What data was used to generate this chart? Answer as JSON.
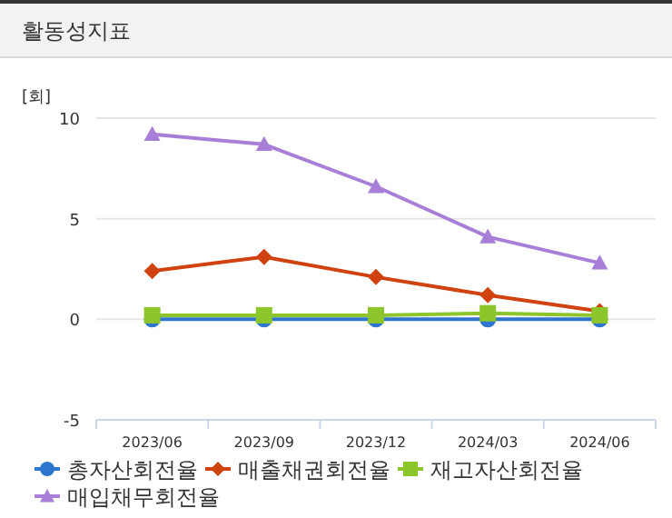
{
  "chart_data": {
    "type": "line",
    "title": "활동성지표",
    "ylabel": "[회]",
    "categories": [
      "2023/06",
      "2023/09",
      "2023/12",
      "2024/03",
      "2024/06"
    ],
    "ylim": [
      -5,
      10
    ],
    "yticks": [
      -5,
      0,
      5,
      10
    ],
    "grid": "y",
    "legend": "bottom",
    "series": [
      {
        "name": "총자산회전율",
        "color": "#2e75d0",
        "marker": "circle",
        "values": [
          0,
          0,
          0,
          0,
          0
        ]
      },
      {
        "name": "매출채권회전율",
        "color": "#d0420f",
        "marker": "diamond",
        "values": [
          2.4,
          3.1,
          2.1,
          1.2,
          0.4
        ]
      },
      {
        "name": "재고자산회전율",
        "color": "#8cc62a",
        "marker": "square",
        "values": [
          0.2,
          0.2,
          0.2,
          0.3,
          0.2
        ]
      },
      {
        "name": "매입채무회전율",
        "color": "#a87fd8",
        "marker": "triangle",
        "values": [
          9.2,
          8.7,
          6.6,
          4.1,
          2.8
        ]
      }
    ]
  }
}
